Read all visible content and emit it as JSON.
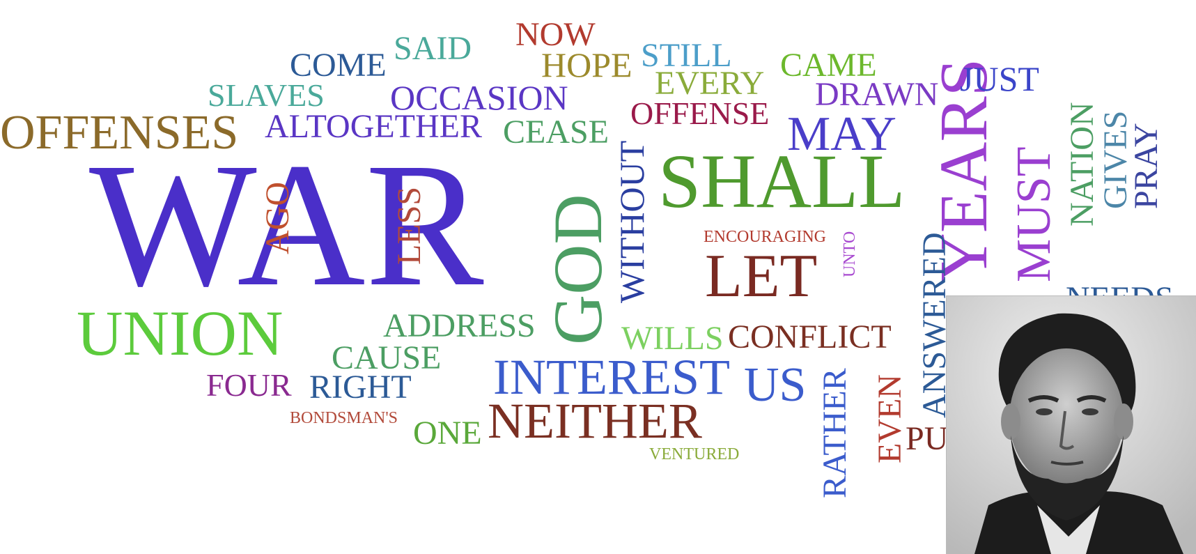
{
  "word_cloud": {
    "words": [
      {
        "text": "WAR",
        "color": "#4a2fc9"
      },
      {
        "text": "SHALL",
        "color": "#4f9a2e"
      },
      {
        "text": "GOD",
        "color": "#4c9e63"
      },
      {
        "text": "YEARS",
        "color": "#9a3fd0"
      },
      {
        "text": "UNION",
        "color": "#5ccb3c"
      },
      {
        "text": "OFFENSES",
        "color": "#8b6a2a"
      },
      {
        "text": "LET",
        "color": "#7a2a22"
      },
      {
        "text": "MAY",
        "color": "#4a3ec9"
      },
      {
        "text": "INTEREST",
        "color": "#3b5ccc"
      },
      {
        "text": "NEITHER",
        "color": "#7a2f22"
      },
      {
        "text": "MUST",
        "color": "#9a3fd0"
      },
      {
        "text": "US",
        "color": "#3b5ccc"
      },
      {
        "text": "ALTOGETHER",
        "color": "#5a36c4"
      },
      {
        "text": "OCCASION",
        "color": "#5a36c4"
      },
      {
        "text": "COME",
        "color": "#2c5a96"
      },
      {
        "text": "SAID",
        "color": "#4aa99a"
      },
      {
        "text": "NOW",
        "color": "#b23a2e"
      },
      {
        "text": "HOPE",
        "color": "#9c8a2c"
      },
      {
        "text": "STILL",
        "color": "#4c9ec9"
      },
      {
        "text": "EVERY",
        "color": "#8aab3a"
      },
      {
        "text": "CAME",
        "color": "#6cb82c"
      },
      {
        "text": "JUST",
        "color": "#3b45c9"
      },
      {
        "text": "DRAWN",
        "color": "#7a3ac4"
      },
      {
        "text": "OFFENSE",
        "color": "#9a1a4a"
      },
      {
        "text": "CEASE",
        "color": "#4c9e63"
      },
      {
        "text": "SLAVES",
        "color": "#4aa99a"
      },
      {
        "text": "WITHOUT",
        "color": "#2a3ea0"
      },
      {
        "text": "LESS",
        "color": "#b24a3a"
      },
      {
        "text": "AGO",
        "color": "#c0502e"
      },
      {
        "text": "NATION",
        "color": "#4c9e63"
      },
      {
        "text": "GIVES",
        "color": "#4c86a8"
      },
      {
        "text": "PRAY",
        "color": "#3b45a0"
      },
      {
        "text": "ENCOURAGING",
        "color": "#b23a2e"
      },
      {
        "text": "UNTO",
        "color": "#a84ad0"
      },
      {
        "text": "ANSWERED",
        "color": "#2c5a96"
      },
      {
        "text": "ADDRESS",
        "color": "#4c9e63"
      },
      {
        "text": "WILLS",
        "color": "#7cd060"
      },
      {
        "text": "CONFLICT",
        "color": "#7a2f22"
      },
      {
        "text": "CAUSE",
        "color": "#4c9e63"
      },
      {
        "text": "FOUR",
        "color": "#8a2a90"
      },
      {
        "text": "RIGHT",
        "color": "#2c5a96"
      },
      {
        "text": "BONDSMAN'S",
        "color": "#b24a3a"
      },
      {
        "text": "ONE",
        "color": "#5aa83a"
      },
      {
        "text": "RATHER",
        "color": "#3b5ccc"
      },
      {
        "text": "EVEN",
        "color": "#b23a2e"
      },
      {
        "text": "VENTURED",
        "color": "#8aab3a"
      },
      {
        "text": "PU",
        "color": "#7a2a22"
      },
      {
        "text": "NEEDS",
        "color": "#2c5a96"
      },
      {
        "text": "...",
        "color": "#4c9e63"
      }
    ]
  }
}
